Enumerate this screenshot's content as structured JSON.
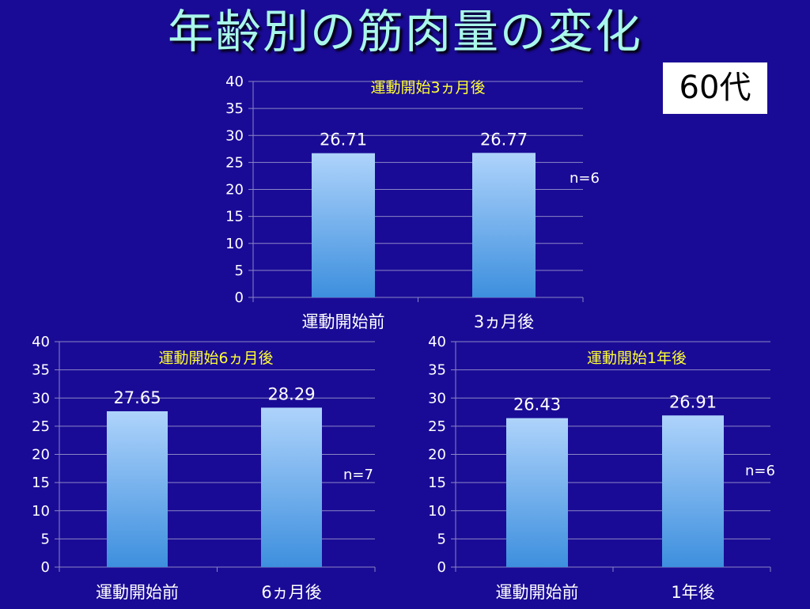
{
  "slide": {
    "title": "年齢別の筋肉量の変化",
    "badge": "60代",
    "colors": {
      "background": "#1a0b96",
      "title": "#a9f7ea",
      "chart_title": "#ffff33",
      "bar_top": "#aed3fb",
      "bar_bottom": "#3d8fde"
    }
  },
  "chart_data": [
    {
      "type": "bar",
      "title": "運動開始3ヵ月後",
      "categories": [
        "運動開始前",
        "3ヵ月後"
      ],
      "values": [
        26.71,
        26.77
      ],
      "data_labels": [
        "26.71",
        "26.77"
      ],
      "annotation": "n=6",
      "ylim": [
        0,
        40
      ],
      "yticks": [
        0,
        5,
        10,
        15,
        20,
        25,
        30,
        35,
        40
      ],
      "grid": true
    },
    {
      "type": "bar",
      "title": "運動開始6ヵ月後",
      "categories": [
        "運動開始前",
        "6ヵ月後"
      ],
      "values": [
        27.65,
        28.29
      ],
      "data_labels": [
        "27.65",
        "28.29"
      ],
      "annotation": "n=7",
      "ylim": [
        0,
        40
      ],
      "yticks": [
        0,
        5,
        10,
        15,
        20,
        25,
        30,
        35,
        40
      ],
      "grid": true
    },
    {
      "type": "bar",
      "title": "運動開始1年後",
      "categories": [
        "運動開始前",
        "1年後"
      ],
      "values": [
        26.43,
        26.91
      ],
      "data_labels": [
        "26.43",
        "26.91"
      ],
      "annotation": "n=6",
      "ylim": [
        0,
        40
      ],
      "yticks": [
        0,
        5,
        10,
        15,
        20,
        25,
        30,
        35,
        40
      ],
      "grid": true
    }
  ]
}
